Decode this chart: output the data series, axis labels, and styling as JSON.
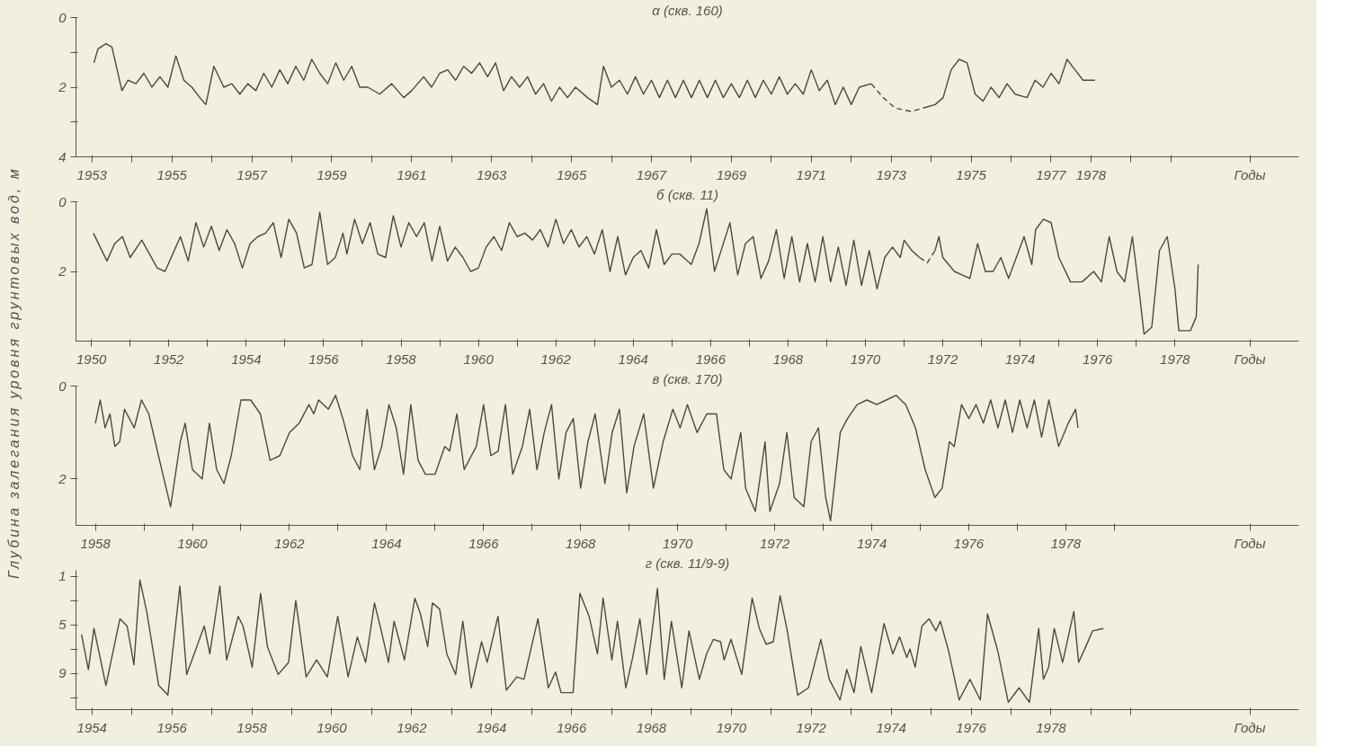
{
  "chart_data": [
    {
      "type": "line",
      "title": "α (скв. 160)",
      "xlabel": "Годы",
      "ylabel": "Глубина залегания уровня грунтовых вод, м",
      "xlim": [
        1952.6,
        1983.2
      ],
      "ylim": [
        4,
        0
      ],
      "yticks": [
        0,
        {
          "value": 1,
          "label": null
        },
        2,
        {
          "value": 3,
          "label": null
        },
        4
      ],
      "xticks": [
        1953,
        {
          "value": 1954,
          "label": null
        },
        1955,
        {
          "value": 1956,
          "label": null
        },
        1957,
        {
          "value": 1958,
          "label": null
        },
        1959,
        {
          "value": 1960,
          "label": null
        },
        1961,
        {
          "value": 1962,
          "label": null
        },
        1963,
        {
          "value": 1964,
          "label": null
        },
        1965,
        {
          "value": 1966,
          "label": null
        },
        1967,
        {
          "value": 1968,
          "label": null
        },
        1969,
        {
          "value": 1970,
          "label": null
        },
        1971,
        {
          "value": 1972,
          "label": null
        },
        1973,
        {
          "value": 1974,
          "label": null
        },
        1975,
        {
          "value": 1976,
          "label": null
        },
        1977,
        1978,
        {
          "value": 1979,
          "label": null
        },
        {
          "value": 1980,
          "label": null
        }
      ],
      "series": [
        {
          "color": "#4a4a40",
          "line_style": "solid",
          "x": [
            1953.05,
            1953.15,
            1953.35,
            1953.5,
            1953.75,
            1953.9,
            1954.1,
            1954.3,
            1954.5,
            1954.7,
            1954.9,
            1955.1,
            1955.3,
            1955.5,
            1955.7,
            1955.85,
            1956.05,
            1956.3,
            1956.5,
            1956.7,
            1956.9,
            1957.1,
            1957.3,
            1957.5,
            1957.7,
            1957.9,
            1958.1,
            1958.3,
            1958.5,
            1958.7,
            1958.9,
            1959.1,
            1959.3,
            1959.5,
            1959.7,
            1959.9,
            1960.2,
            1960.5,
            1960.8,
            1961.0,
            1961.3,
            1961.5,
            1961.7,
            1961.9,
            1962.1,
            1962.3,
            1962.5,
            1962.7,
            1962.9,
            1963.1,
            1963.3,
            1963.5,
            1963.7,
            1963.9,
            1964.1,
            1964.3,
            1964.5,
            1964.7,
            1964.9,
            1965.1,
            1965.4,
            1965.65,
            1965.8,
            1966.0,
            1966.2,
            1966.4,
            1966.6,
            1966.8,
            1967.0,
            1967.2,
            1967.4,
            1967.6,
            1967.8,
            1968.0,
            1968.2,
            1968.4,
            1968.6,
            1968.8,
            1969.0,
            1969.2,
            1969.4,
            1969.6,
            1969.8,
            1970.0,
            1970.2,
            1970.4,
            1970.6,
            1970.8,
            1971.0,
            1971.2,
            1971.4,
            1971.6,
            1971.8,
            1972.0,
            1972.2,
            1972.5
          ],
          "values": [
            1.3,
            0.9,
            0.75,
            0.85,
            2.1,
            1.8,
            1.9,
            1.6,
            2.0,
            1.7,
            2.0,
            1.1,
            1.8,
            2.0,
            2.3,
            2.5,
            1.4,
            2.0,
            1.9,
            2.2,
            1.9,
            2.1,
            1.6,
            2.0,
            1.5,
            1.9,
            1.4,
            1.8,
            1.2,
            1.6,
            1.9,
            1.3,
            1.8,
            1.4,
            2.0,
            2.0,
            2.2,
            1.9,
            2.3,
            2.1,
            1.7,
            2.0,
            1.6,
            1.5,
            1.8,
            1.4,
            1.6,
            1.3,
            1.7,
            1.3,
            2.1,
            1.7,
            2.0,
            1.7,
            2.2,
            1.9,
            2.4,
            2.0,
            2.3,
            2.0,
            2.3,
            2.5,
            1.4,
            2.0,
            1.8,
            2.2,
            1.7,
            2.2,
            1.8,
            2.3,
            1.8,
            2.3,
            1.8,
            2.3,
            1.8,
            2.3,
            1.8,
            2.3,
            1.9,
            2.3,
            1.8,
            2.3,
            1.8,
            2.2,
            1.7,
            2.2,
            1.9,
            2.2,
            1.5,
            2.1,
            1.8,
            2.5,
            2.0,
            2.5,
            2.0,
            1.9
          ]
        },
        {
          "color": "#4a4a40",
          "line_style": "dashed",
          "x": [
            1972.5,
            1972.8,
            1973.1,
            1973.5,
            1973.8
          ],
          "values": [
            1.9,
            2.3,
            2.6,
            2.7,
            2.6
          ]
        },
        {
          "color": "#4a4a40",
          "line_style": "solid",
          "x": [
            1973.8,
            1974.1,
            1974.3,
            1974.5,
            1974.7,
            1974.9,
            1975.1,
            1975.3,
            1975.5,
            1975.7,
            1975.9,
            1976.1,
            1976.4,
            1976.6,
            1976.8,
            1977.0,
            1977.2,
            1977.4,
            1977.6,
            1977.8,
            1978.1
          ],
          "values": [
            2.6,
            2.5,
            2.3,
            1.5,
            1.2,
            1.3,
            2.2,
            2.4,
            2.0,
            2.3,
            1.9,
            2.2,
            2.3,
            1.8,
            2.0,
            1.6,
            1.9,
            1.2,
            1.5,
            1.8,
            1.8
          ]
        }
      ]
    },
    {
      "type": "line",
      "title": "б (скв. 11)",
      "xlabel": "Годы",
      "xlim": [
        1949.6,
        1981.2
      ],
      "ylim": [
        4,
        0
      ],
      "yticks": [
        0,
        2
      ],
      "xticks": [
        1950,
        {
          "value": 1951,
          "label": null
        },
        1952,
        {
          "value": 1953,
          "label": null
        },
        1954,
        {
          "value": 1955,
          "label": null
        },
        1956,
        {
          "value": 1957,
          "label": null
        },
        1958,
        {
          "value": 1959,
          "label": null
        },
        1960,
        {
          "value": 1961,
          "label": null
        },
        1962,
        {
          "value": 1963,
          "label": null
        },
        1964,
        {
          "value": 1965,
          "label": null
        },
        1966,
        {
          "value": 1967,
          "label": null
        },
        1968,
        {
          "value": 1969,
          "label": null
        },
        1970,
        {
          "value": 1971,
          "label": null
        },
        1972,
        {
          "value": 1973,
          "label": null
        },
        1974,
        {
          "value": 1975,
          "label": null
        },
        1976,
        {
          "value": 1977,
          "label": null
        },
        1978
      ],
      "series": [
        {
          "color": "#4a4a40",
          "line_style": "solid",
          "x": [
            1950.05,
            1950.4,
            1950.6,
            1950.8,
            1951.0,
            1951.3,
            1951.5,
            1951.7,
            1951.9,
            1952.1,
            1952.3,
            1952.5,
            1952.7,
            1952.9,
            1953.1,
            1953.3,
            1953.5,
            1953.7,
            1953.9,
            1954.1,
            1954.3,
            1954.5,
            1954.7,
            1954.9,
            1955.1,
            1955.3,
            1955.5,
            1955.7,
            1955.9,
            1956.1,
            1956.3,
            1956.5,
            1956.6,
            1956.8,
            1957.0,
            1957.2,
            1957.4,
            1957.6,
            1957.8,
            1958.0,
            1958.2,
            1958.4,
            1958.6,
            1958.8,
            1959.0,
            1959.2,
            1959.4,
            1959.6,
            1959.8,
            1960.0,
            1960.2,
            1960.4,
            1960.6,
            1960.8,
            1961.0,
            1961.2,
            1961.4,
            1961.6,
            1961.8,
            1962.0,
            1962.2,
            1962.4,
            1962.6,
            1962.8,
            1963.0,
            1963.2,
            1963.4,
            1963.6,
            1963.8,
            1964.0,
            1964.2,
            1964.4,
            1964.6,
            1964.8,
            1965.0,
            1965.2,
            1965.5,
            1965.7,
            1965.9,
            1966.1,
            1966.3,
            1966.5,
            1966.7,
            1966.9,
            1967.1,
            1967.3,
            1967.5,
            1967.7,
            1967.9,
            1968.1,
            1968.3,
            1968.5,
            1968.7,
            1968.9,
            1969.1,
            1969.3,
            1969.5,
            1969.7,
            1969.9,
            1970.1,
            1970.3,
            1970.5,
            1970.7,
            1970.9,
            1971.0,
            1971.2,
            1971.4
          ],
          "values": [
            0.9,
            1.7,
            1.2,
            1.0,
            1.6,
            1.1,
            1.5,
            1.9,
            2.0,
            1.5,
            1.0,
            1.7,
            0.6,
            1.3,
            0.7,
            1.4,
            0.8,
            1.2,
            1.9,
            1.2,
            1.0,
            0.9,
            0.6,
            1.6,
            0.5,
            0.9,
            1.9,
            1.8,
            0.3,
            1.8,
            1.6,
            0.9,
            1.5,
            0.5,
            1.2,
            0.6,
            1.5,
            1.6,
            0.4,
            1.3,
            0.6,
            1.0,
            0.6,
            1.7,
            0.7,
            1.7,
            1.3,
            1.6,
            2.0,
            1.9,
            1.3,
            1.0,
            1.4,
            0.6,
            1.0,
            0.9,
            1.1,
            0.8,
            1.3,
            0.5,
            1.2,
            0.8,
            1.3,
            1.0,
            1.5,
            0.8,
            2.0,
            1.0,
            2.1,
            1.6,
            1.4,
            1.9,
            0.8,
            1.8,
            1.5,
            1.5,
            1.8,
            1.2,
            0.2,
            2.0,
            1.3,
            0.6,
            2.1,
            1.2,
            1.0,
            2.2,
            1.7,
            0.8,
            2.2,
            1.0,
            2.3,
            1.2,
            2.3,
            1.0,
            2.3,
            1.3,
            2.4,
            1.1,
            2.4,
            1.4,
            2.5,
            1.6,
            1.3,
            1.6,
            1.1,
            1.4,
            1.6
          ]
        },
        {
          "color": "#4a4a40",
          "line_style": "dashed",
          "x": [
            1971.4,
            1971.6,
            1971.8
          ],
          "values": [
            1.6,
            1.75,
            1.4
          ]
        },
        {
          "color": "#4a4a40",
          "line_style": "solid",
          "x": [
            1971.8,
            1971.9,
            1972.0,
            1972.3,
            1972.5,
            1972.7,
            1972.9,
            1973.1,
            1973.3,
            1973.5,
            1973.7,
            1973.9,
            1974.1,
            1974.3,
            1974.4,
            1974.6,
            1974.8,
            1975.0,
            1975.3,
            1975.6,
            1975.9,
            1976.1,
            1976.3,
            1976.5,
            1976.7,
            1976.9,
            1977.1,
            1977.2,
            1977.4,
            1977.6,
            1977.8,
            1978.0,
            1978.1,
            1978.4,
            1978.55,
            1978.6
          ],
          "values": [
            1.4,
            1.0,
            1.6,
            2.0,
            2.1,
            2.2,
            1.2,
            2.0,
            2.0,
            1.6,
            2.2,
            1.6,
            1.0,
            1.8,
            0.8,
            0.5,
            0.6,
            1.6,
            2.3,
            2.3,
            2.0,
            2.3,
            1.0,
            2.0,
            2.3,
            1.0,
            2.8,
            3.8,
            3.6,
            1.4,
            1.0,
            2.5,
            3.7,
            3.7,
            3.3,
            1.8
          ]
        }
      ]
    },
    {
      "type": "line",
      "title": "в (скв. 170)",
      "xlabel": "Годы",
      "xlim": [
        1957.6,
        1982.8
      ],
      "ylim": [
        3,
        0
      ],
      "yticks": [
        0,
        2
      ],
      "xticks": [
        1958,
        {
          "value": 1959,
          "label": null
        },
        1960,
        {
          "value": 1961,
          "label": null
        },
        1962,
        {
          "value": 1963,
          "label": null
        },
        1964,
        {
          "value": 1965,
          "label": null
        },
        1966,
        {
          "value": 1967,
          "label": null
        },
        1968,
        {
          "value": 1969,
          "label": null
        },
        1970,
        {
          "value": 1971,
          "label": null
        },
        1972,
        {
          "value": 1973,
          "label": null
        },
        1974,
        {
          "value": 1975,
          "label": null
        },
        1976,
        {
          "value": 1977,
          "label": null
        },
        1978,
        {
          "value": 1979,
          "label": null
        }
      ],
      "series": [
        {
          "color": "#4a4a40",
          "line_style": "solid",
          "x": [
            1958.0,
            1958.1,
            1958.2,
            1958.3,
            1958.4,
            1958.5,
            1958.6,
            1958.8,
            1958.95,
            1959.1,
            1959.3,
            1959.55,
            1959.75,
            1959.85,
            1960.0,
            1960.2,
            1960.35,
            1960.5,
            1960.65,
            1960.8,
            1961.0,
            1961.2,
            1961.4,
            1961.6,
            1961.8,
            1962.0,
            1962.2,
            1962.4,
            1962.5,
            1962.6,
            1962.8,
            1962.95,
            1963.1,
            1963.3,
            1963.45,
            1963.6,
            1963.75,
            1963.9,
            1964.05,
            1964.2,
            1964.35,
            1964.5,
            1964.65,
            1964.8,
            1965.0,
            1965.2,
            1965.3,
            1965.45,
            1965.6,
            1965.7,
            1965.85,
            1966.0,
            1966.15,
            1966.3,
            1966.45,
            1966.6,
            1966.8,
            1966.95,
            1967.1,
            1967.25,
            1967.4,
            1967.55,
            1967.7,
            1967.85,
            1968.0,
            1968.15,
            1968.3,
            1968.5,
            1968.65,
            1968.8,
            1968.95,
            1969.1,
            1969.3,
            1969.5,
            1969.7,
            1969.9,
            1970.05,
            1970.2,
            1970.4,
            1970.6,
            1970.8,
            1970.95,
            1971.1,
            1971.3,
            1971.4,
            1971.6,
            1971.8,
            1971.9,
            1972.1,
            1972.25,
            1972.4,
            1972.6,
            1972.75,
            1972.9,
            1973.05,
            1973.15,
            1973.35,
            1973.5,
            1973.7,
            1973.9,
            1974.1,
            1974.3,
            1974.5,
            1974.7,
            1974.9,
            1975.1,
            1975.3,
            1975.45,
            1975.6,
            1975.7,
            1975.85,
            1976.0,
            1976.15,
            1976.3,
            1976.45,
            1976.6,
            1976.75,
            1976.9,
            1977.05,
            1977.2,
            1977.35,
            1977.5,
            1977.65,
            1977.85,
            1978.05,
            1978.2,
            1978.25
          ],
          "values": [
            0.8,
            0.3,
            0.9,
            0.6,
            1.3,
            1.2,
            0.5,
            0.9,
            0.3,
            0.6,
            1.5,
            2.6,
            1.2,
            0.8,
            1.8,
            2.0,
            0.8,
            1.8,
            2.1,
            1.5,
            0.3,
            0.3,
            0.6,
            1.6,
            1.5,
            1.0,
            0.8,
            0.4,
            0.6,
            0.3,
            0.5,
            0.2,
            0.7,
            1.5,
            1.8,
            0.5,
            1.8,
            1.3,
            0.4,
            0.9,
            1.9,
            0.4,
            1.6,
            1.9,
            1.9,
            1.3,
            1.4,
            0.6,
            1.8,
            1.6,
            1.3,
            0.4,
            1.5,
            1.4,
            0.4,
            1.9,
            1.3,
            0.5,
            1.8,
            1.0,
            0.4,
            2.0,
            1.0,
            0.7,
            2.2,
            1.2,
            0.6,
            2.1,
            1.0,
            0.5,
            2.3,
            1.3,
            0.6,
            2.2,
            1.2,
            0.5,
            0.9,
            0.4,
            1.0,
            0.6,
            0.6,
            1.8,
            2.0,
            1.0,
            2.2,
            2.7,
            1.2,
            2.7,
            2.1,
            1.0,
            2.4,
            2.6,
            1.2,
            0.9,
            2.4,
            2.9,
            1.0,
            0.7,
            0.4,
            0.3,
            0.4,
            0.3,
            0.2,
            0.4,
            0.9,
            1.8,
            2.4,
            2.2,
            1.2,
            1.3,
            0.4,
            0.7,
            0.4,
            0.8,
            0.3,
            0.9,
            0.3,
            1.0,
            0.3,
            0.9,
            0.3,
            1.1,
            0.3,
            1.3,
            0.8,
            0.5,
            0.9
          ]
        }
      ]
    },
    {
      "type": "line",
      "title": "г (скв. 11/9-9)",
      "xlabel": "Годы",
      "xlim": [
        1953.6,
        1984.2
      ],
      "ylim": [
        12,
        0.5
      ],
      "yticks": [
        1,
        {
          "value": 3,
          "label": null
        },
        5,
        {
          "value": 7,
          "label": null
        },
        9,
        {
          "value": 11,
          "label": null
        }
      ],
      "xticks": [
        1954,
        {
          "value": 1955,
          "label": null
        },
        1956,
        {
          "value": 1957,
          "label": null
        },
        1958,
        {
          "value": 1959,
          "label": null
        },
        1960,
        {
          "value": 1961,
          "label": null
        },
        1962,
        {
          "value": 1963,
          "label": null
        },
        1964,
        {
          "value": 1965,
          "label": null
        },
        1966,
        {
          "value": 1967,
          "label": null
        },
        1968,
        {
          "value": 1969,
          "label": null
        },
        1970,
        {
          "value": 1971,
          "label": null
        },
        1972,
        {
          "value": 1973,
          "label": null
        },
        1974,
        {
          "value": 1975,
          "label": null
        },
        1976,
        {
          "value": 1977,
          "label": null
        },
        1978,
        {
          "value": 1979,
          "label": null
        },
        {
          "value": 1980,
          "label": null
        }
      ],
      "series": [
        {
          "color": "#4a4a40",
          "line_style": "solid",
          "x": [
            1953.74,
            1953.91,
            1954.05,
            1954.35,
            1954.7,
            1954.88,
            1955.05,
            1955.2,
            1955.37,
            1955.67,
            1955.9,
            1956.2,
            1956.37,
            1956.81,
            1956.95,
            1957.2,
            1957.37,
            1957.66,
            1957.78,
            1958.01,
            1958.22,
            1958.39,
            1958.66,
            1958.92,
            1959.1,
            1959.36,
            1959.62,
            1959.89,
            1960.15,
            1960.41,
            1960.64,
            1960.85,
            1961.07,
            1961.24,
            1961.42,
            1961.56,
            1961.82,
            1962.08,
            1962.22,
            1962.4,
            1962.52,
            1962.7,
            1962.88,
            1963.1,
            1963.28,
            1963.49,
            1963.75,
            1963.89,
            1964.16,
            1964.37,
            1964.63,
            1964.81,
            1965.16,
            1965.42,
            1965.6,
            1965.74,
            1966.04,
            1966.21,
            1966.44,
            1966.65,
            1966.79,
            1967.01,
            1967.15,
            1967.36,
            1967.53,
            1967.71,
            1967.88,
            1968.15,
            1968.32,
            1968.5,
            1968.76,
            1968.94,
            1969.2,
            1969.38,
            1969.55,
            1969.73,
            1969.82,
            1969.99,
            1970.26,
            1970.52,
            1970.7,
            1970.87,
            1971.05,
            1971.22,
            1971.4,
            1971.66,
            1971.93,
            1972.24,
            1972.45,
            1972.72,
            1972.89,
            1973.07,
            1973.24,
            1973.51,
            1973.82,
            1974.04,
            1974.21,
            1974.39,
            1974.47,
            1974.6,
            1974.77,
            1974.95,
            1975.12,
            1975.23,
            1975.44,
            1975.7,
            1975.97,
            1976.23,
            1976.41,
            1976.67,
            1976.93,
            1977.2,
            1977.46,
            1977.69,
            1977.81,
            1977.94,
            1978.08,
            1978.29,
            1978.57,
            1978.69,
            1978.87,
            1979.04,
            1979.31
          ],
          "values": [
            5.8,
            8.7,
            5.3,
            10.0,
            4.5,
            5.1,
            8.3,
            1.3,
            3.9,
            10.0,
            10.8,
            1.8,
            9.1,
            5.1,
            7.4,
            1.8,
            7.9,
            4.3,
            5.1,
            8.5,
            2.4,
            6.8,
            9.1,
            8.1,
            3.0,
            9.3,
            7.9,
            9.3,
            4.3,
            9.3,
            6.0,
            8.1,
            3.2,
            5.5,
            8.1,
            4.7,
            7.9,
            2.8,
            4.1,
            6.8,
            3.2,
            3.7,
            7.4,
            9.1,
            4.7,
            10.2,
            6.4,
            8.1,
            4.3,
            10.4,
            9.3,
            9.5,
            4.5,
            10.2,
            8.9,
            10.6,
            10.6,
            2.4,
            4.3,
            7.4,
            2.8,
            7.9,
            4.7,
            10.2,
            7.7,
            4.5,
            9.1,
            2.0,
            9.5,
            4.7,
            10.2,
            5.5,
            9.5,
            7.4,
            6.2,
            6.4,
            7.9,
            6.2,
            9.1,
            2.8,
            5.3,
            6.6,
            6.4,
            2.6,
            5.5,
            10.8,
            10.2,
            6.2,
            9.5,
            11.2,
            8.7,
            10.6,
            6.8,
            10.6,
            4.9,
            7.4,
            6.0,
            7.7,
            7.0,
            8.5,
            5.1,
            4.5,
            5.5,
            4.7,
            7.2,
            11.2,
            9.5,
            11.2,
            4.1,
            7.2,
            11.4,
            10.2,
            11.4,
            5.3,
            9.5,
            8.5,
            5.3,
            8.1,
            3.9,
            8.1,
            6.8,
            5.5,
            5.3
          ]
        }
      ]
    }
  ]
}
